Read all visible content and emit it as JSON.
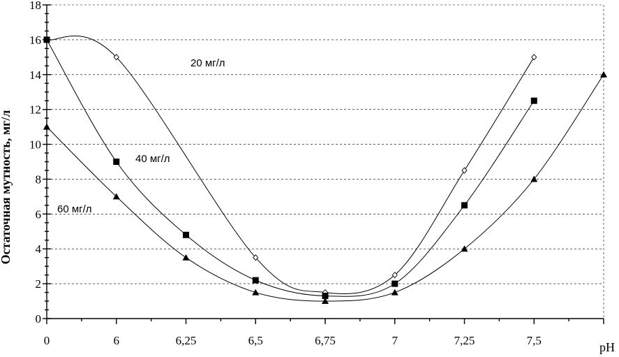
{
  "chart_data": {
    "type": "line",
    "ylabel": "Остаточная мутность, мг/л",
    "xlabel": "pH",
    "categories": [
      "0",
      "6",
      "6,25",
      "6,5",
      "6,75",
      "7",
      "7,25",
      "7,5",
      ""
    ],
    "y_ticks": [
      "0",
      "2",
      "4",
      "6",
      "8",
      "10",
      "12",
      "14",
      "16",
      "18"
    ],
    "ylim": [
      0,
      18
    ],
    "grid": "horizontal",
    "series": [
      {
        "name": "20 мг/л",
        "marker": "diamond-open",
        "points": [
          [
            0,
            16
          ],
          [
            1,
            15
          ],
          [
            3,
            3.5
          ],
          [
            4,
            1.5
          ],
          [
            5,
            2.5
          ],
          [
            6,
            8.5
          ],
          [
            7,
            15
          ]
        ]
      },
      {
        "name": "40 мг/л",
        "marker": "square-filled",
        "points": [
          [
            0,
            16
          ],
          [
            1,
            9
          ],
          [
            2,
            4.8
          ],
          [
            3,
            2.2
          ],
          [
            4,
            1.3
          ],
          [
            5,
            2
          ],
          [
            6,
            6.5
          ],
          [
            7,
            12.5
          ]
        ]
      },
      {
        "name": "60 мг/л",
        "marker": "triangle-filled",
        "points": [
          [
            0,
            11
          ],
          [
            1,
            7
          ],
          [
            2,
            3.5
          ],
          [
            3,
            1.5
          ],
          [
            4,
            1
          ],
          [
            5,
            1.5
          ],
          [
            6,
            4
          ],
          [
            7,
            8
          ],
          [
            8,
            14
          ]
        ]
      }
    ]
  }
}
